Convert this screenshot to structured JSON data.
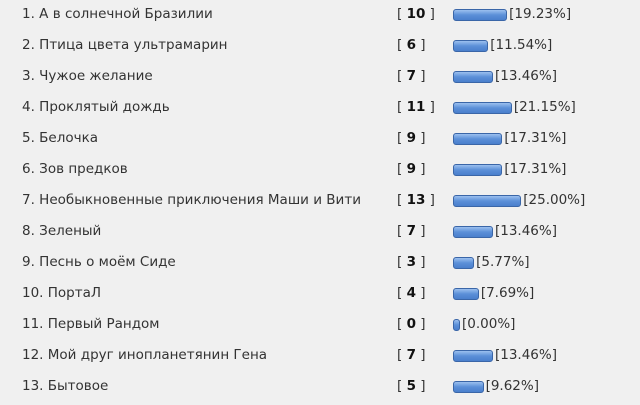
{
  "poll": {
    "bar_color": "#5b8fd8",
    "items": [
      {
        "title": "1. А в солнечной Бразилии",
        "votes": "10",
        "percent": "[19.23%]",
        "value": 19.23
      },
      {
        "title": "2. Птица цвета ультрамарин",
        "votes": "6",
        "percent": "[11.54%]",
        "value": 11.54
      },
      {
        "title": "3. Чужое желание",
        "votes": "7",
        "percent": "[13.46%]",
        "value": 13.46
      },
      {
        "title": "4. Проклятый дождь",
        "votes": "11",
        "percent": "[21.15%]",
        "value": 21.15
      },
      {
        "title": "5. Белочка",
        "votes": "9",
        "percent": "[17.31%]",
        "value": 17.31
      },
      {
        "title": "6. Зов предков",
        "votes": "9",
        "percent": "[17.31%]",
        "value": 17.31
      },
      {
        "title": "7. Необыкновенные приключения Маши и Вити",
        "votes": "13",
        "percent": "[25.00%]",
        "value": 25.0
      },
      {
        "title": "8. Зеленый",
        "votes": "7",
        "percent": "[13.46%]",
        "value": 13.46
      },
      {
        "title": "9. Песнь о моём Сиде",
        "votes": "3",
        "percent": "[5.77%]",
        "value": 5.77
      },
      {
        "title": "10. ПортаЛ",
        "votes": "4",
        "percent": "[7.69%]",
        "value": 7.69
      },
      {
        "title": "11. Первый Рандом",
        "votes": "0",
        "percent": "[0.00%]",
        "value": 0.0
      },
      {
        "title": "12. Мой друг инопланетянин Гена",
        "votes": "7",
        "percent": "[13.46%]",
        "value": 13.46
      },
      {
        "title": "13. Бытовое",
        "votes": "5",
        "percent": "[9.62%]",
        "value": 9.62
      }
    ]
  }
}
